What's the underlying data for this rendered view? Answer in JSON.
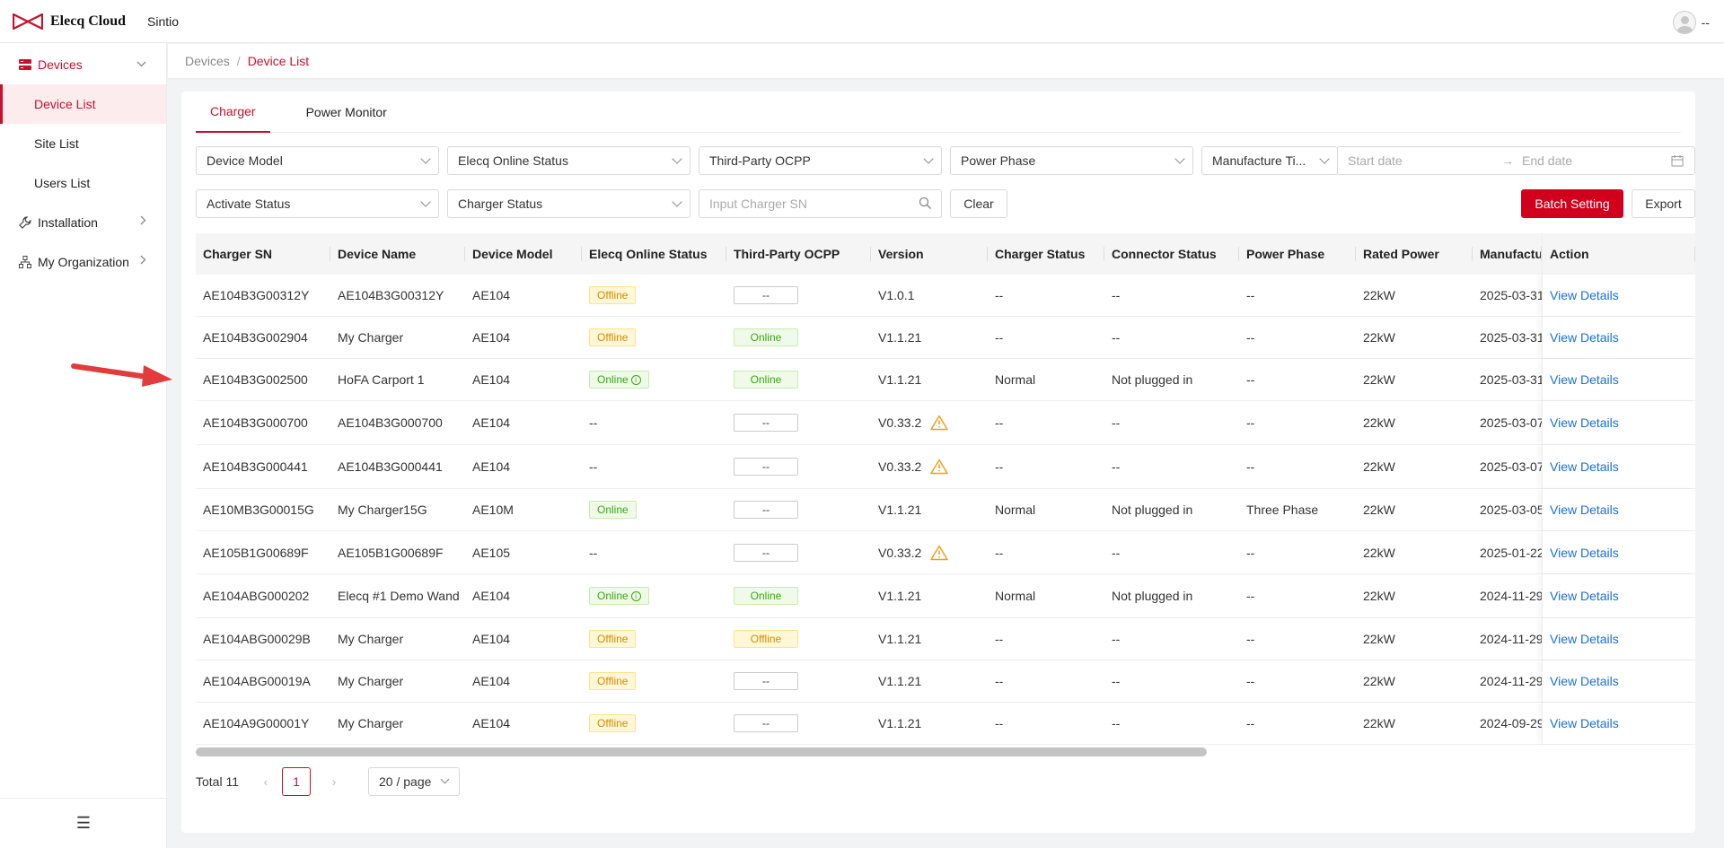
{
  "app": {
    "brand": "Elecq Cloud",
    "org": "Sintio",
    "user_label": "--"
  },
  "colors": {
    "accent": "#c8102e",
    "primary_button": "#d1001c",
    "link": "#1a6fd8",
    "online": "#3aa614",
    "offline": "#d38b00"
  },
  "sidebar": {
    "groups": [
      {
        "label": "Devices",
        "icon": "server-icon",
        "expanded": true,
        "children": [
          "Device List",
          "Site List",
          "Users List"
        ]
      },
      {
        "label": "Installation",
        "icon": "wrench-icon"
      },
      {
        "label": "My Organization",
        "icon": "org-tree-icon"
      }
    ],
    "selected": "Device List"
  },
  "breadcrumb": {
    "parent": "Devices",
    "sep": "/",
    "current": "Device List"
  },
  "tabs": [
    "Charger",
    "Power Monitor"
  ],
  "filters": {
    "device_model": "Device Model",
    "online_status": "Elecq Online Status",
    "ocpp": "Third-Party OCPP",
    "power_phase": "Power Phase",
    "manufacture_time": "Manufacture Ti...",
    "start_date": "Start date",
    "date_arrow": "→",
    "end_date": "End date",
    "activate_status": "Activate Status",
    "charger_status": "Charger Status",
    "sn_placeholder": "Input Charger SN",
    "clear": "Clear",
    "batch": "Batch Setting",
    "export": "Export"
  },
  "table": {
    "columns": [
      "Charger SN",
      "Device Name",
      "Device Model",
      "Elecq Online Status",
      "Third-Party OCPP",
      "Version",
      "Charger Status",
      "Connector Status",
      "Power Phase",
      "Rated Power",
      "Manufactur",
      "Action"
    ],
    "rows": [
      {
        "sn": "AE104B3G00312Y",
        "name": "AE104B3G00312Y",
        "model": "AE104",
        "online": "Offline",
        "ocpp": "--",
        "version": "V1.0.1",
        "warn": false,
        "charger": "--",
        "connector": "--",
        "phase": "--",
        "power": "22kW",
        "mfg": "2025-03-31",
        "action": "View Details"
      },
      {
        "sn": "AE104B3G002904",
        "name": "My Charger",
        "model": "AE104",
        "online": "Offline",
        "ocpp": "Online",
        "version": "V1.1.21",
        "warn": false,
        "charger": "--",
        "connector": "--",
        "phase": "--",
        "power": "22kW",
        "mfg": "2025-03-31",
        "action": "View Details"
      },
      {
        "sn": "AE104B3G002500",
        "name": "HoFA Carport 1",
        "model": "AE104",
        "online": "Online",
        "online_info": true,
        "ocpp": "Online",
        "version": "V1.1.21",
        "warn": false,
        "charger": "Normal",
        "connector": "Not plugged in",
        "phase": "--",
        "power": "22kW",
        "mfg": "2025-03-31",
        "action": "View Details"
      },
      {
        "sn": "AE104B3G000700",
        "name": "AE104B3G000700",
        "model": "AE104",
        "online": "--",
        "ocpp": "--",
        "version": "V0.33.2",
        "warn": true,
        "charger": "--",
        "connector": "--",
        "phase": "--",
        "power": "22kW",
        "mfg": "2025-03-07",
        "action": "View Details"
      },
      {
        "sn": "AE104B3G000441",
        "name": "AE104B3G000441",
        "model": "AE104",
        "online": "--",
        "ocpp": "--",
        "version": "V0.33.2",
        "warn": true,
        "charger": "--",
        "connector": "--",
        "phase": "--",
        "power": "22kW",
        "mfg": "2025-03-07",
        "action": "View Details"
      },
      {
        "sn": "AE10MB3G00015G",
        "name": "My Charger15G",
        "model": "AE10M",
        "online": "Online",
        "ocpp": "--",
        "version": "V1.1.21",
        "warn": false,
        "charger": "Normal",
        "connector": "Not plugged in",
        "phase": "Three Phase",
        "power": "22kW",
        "mfg": "2025-03-05",
        "action": "View Details"
      },
      {
        "sn": "AE105B1G00689F",
        "name": "AE105B1G00689F",
        "model": "AE105",
        "online": "--",
        "ocpp": "--",
        "version": "V0.33.2",
        "warn": true,
        "charger": "--",
        "connector": "--",
        "phase": "--",
        "power": "22kW",
        "mfg": "2025-01-22",
        "action": "View Details"
      },
      {
        "sn": "AE104ABG000202",
        "name": "Elecq #1 Demo Wand",
        "model": "AE104",
        "online": "Online",
        "online_info": true,
        "ocpp": "Online",
        "version": "V1.1.21",
        "warn": false,
        "charger": "Normal",
        "connector": "Not plugged in",
        "phase": "--",
        "power": "22kW",
        "mfg": "2024-11-29",
        "action": "View Details"
      },
      {
        "sn": "AE104ABG00029B",
        "name": "My Charger",
        "model": "AE104",
        "online": "Offline",
        "ocpp": "Offline",
        "version": "V1.1.21",
        "warn": false,
        "charger": "--",
        "connector": "--",
        "phase": "--",
        "power": "22kW",
        "mfg": "2024-11-29",
        "action": "View Details"
      },
      {
        "sn": "AE104ABG00019A",
        "name": "My Charger",
        "model": "AE104",
        "online": "Offline",
        "ocpp": "--",
        "version": "V1.1.21",
        "warn": false,
        "charger": "--",
        "connector": "--",
        "phase": "--",
        "power": "22kW",
        "mfg": "2024-11-29",
        "action": "View Details"
      },
      {
        "sn": "AE104A9G00001Y",
        "name": "My Charger",
        "model": "AE104",
        "online": "Offline",
        "ocpp": "--",
        "version": "V1.1.21",
        "warn": false,
        "charger": "--",
        "connector": "--",
        "phase": "--",
        "power": "22kW",
        "mfg": "2024-09-29",
        "action": "View Details"
      }
    ]
  },
  "pagination": {
    "total": "Total 11",
    "current": "1",
    "page_size": "20 / page",
    "prev": "‹",
    "next": "›"
  },
  "menu_toggle": "☰"
}
